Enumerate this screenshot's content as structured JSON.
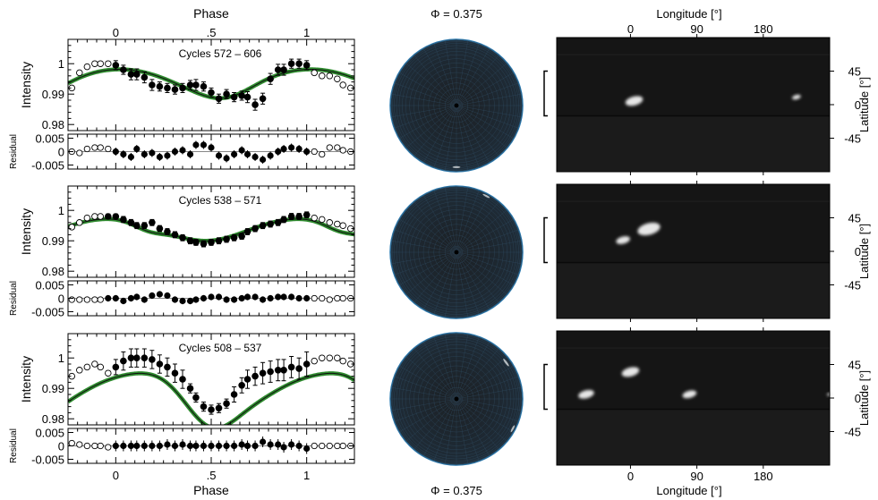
{
  "figure": {
    "top_phase_label": "Phase",
    "bottom_phase_label": "Phase",
    "phi_top_label": "Φ = 0.375",
    "phi_bottom_label": "Φ = 0.375",
    "lon_top_label": "Longitude [°]",
    "lon_bottom_label": "Longitude [°]",
    "intensity_label": "Intensity",
    "residual_label": "Residual",
    "latitude_label": "Latitude [°]"
  },
  "chart_data": [
    {
      "type": "scatter",
      "panel": "light-curve",
      "title": "Cycles 572 – 606",
      "xlabel": "Phase",
      "ylabel": "Intensity",
      "xlim": [
        -0.25,
        1.25
      ],
      "ylim": [
        0.978,
        1.008
      ],
      "xticks": [
        0,
        0.5,
        1
      ],
      "yticks": [
        0.98,
        0.99,
        1
      ],
      "model": {
        "type": "two-dip",
        "base": 0.9995,
        "dips": [
          {
            "center": 0.52,
            "width": 0.22,
            "depth": 0.009
          },
          {
            "center": 0.58,
            "width": 0.12,
            "depth": 0.002
          }
        ]
      },
      "phase": [
        0.0,
        0.04,
        0.08,
        0.11,
        0.15,
        0.19,
        0.23,
        0.27,
        0.31,
        0.35,
        0.39,
        0.42,
        0.46,
        0.5,
        0.54,
        0.58,
        0.62,
        0.66,
        0.69,
        0.73,
        0.77,
        0.81,
        0.85,
        0.88,
        0.92,
        0.96,
        1.0
      ],
      "intensity": [
        0.9995,
        0.998,
        0.9965,
        0.9965,
        0.9955,
        0.993,
        0.9925,
        0.992,
        0.9915,
        0.992,
        0.993,
        0.993,
        0.9925,
        0.9905,
        0.9885,
        0.99,
        0.989,
        0.9895,
        0.989,
        0.9865,
        0.9885,
        0.995,
        0.998,
        0.998,
        1.0,
        1.0,
        0.9995
      ],
      "errors": [
        0.0015,
        0.0015,
        0.0018,
        0.0018,
        0.0018,
        0.0018,
        0.0015,
        0.0015,
        0.0015,
        0.0015,
        0.0015,
        0.0018,
        0.0015,
        0.0015,
        0.0015,
        0.0015,
        0.0015,
        0.0015,
        0.0018,
        0.0018,
        0.0018,
        0.0018,
        0.0018,
        0.0018,
        0.0015,
        0.0015,
        0.0015
      ],
      "open_phase": [
        -0.23,
        -0.19,
        -0.15,
        -0.11,
        -0.08,
        -0.04,
        1.04,
        1.08,
        1.12,
        1.16,
        1.19,
        1.23
      ],
      "open_intensity": [
        0.992,
        0.997,
        0.999,
        1.0,
        1.0,
        1.0,
        0.997,
        0.996,
        0.996,
        0.995,
        0.993,
        0.992
      ],
      "residuals": [
        0.0,
        -0.001,
        -0.002,
        0.001,
        -0.001,
        -0.0005,
        -0.002,
        -0.0015,
        0.0,
        0.0005,
        -0.001,
        0.0025,
        0.0025,
        0.0015,
        -0.0015,
        -0.0025,
        -0.001,
        0.0005,
        -0.001,
        -0.002,
        -0.003,
        -0.0015,
        0.0,
        0.001,
        0.0015,
        0.001,
        0.0
      ],
      "residual_errors": 0.0015,
      "open_residuals": [
        0.0,
        -0.0005,
        0.001,
        0.0015,
        0.0015,
        0.001,
        0.0,
        -0.001,
        0.0015,
        0.0015,
        0.0005,
        0.0
      ],
      "residual_ylim": [
        -0.0065,
        0.0065
      ],
      "residual_yticks": [
        -0.005,
        0,
        0.005
      ],
      "map_xticks": [
        0,
        90,
        180
      ],
      "map_yticks": [
        45,
        0,
        -45
      ],
      "spots": [
        {
          "lon": 5,
          "lat": 5,
          "size": 1.0
        },
        {
          "lon": 225,
          "lat": 10,
          "size": 0.5
        }
      ],
      "sphere_spots": [
        {
          "rx": 0.0,
          "ry": 0.93,
          "size": 0.12
        }
      ]
    },
    {
      "type": "scatter",
      "panel": "light-curve",
      "title": "Cycles 538 – 571",
      "xlabel": "Phase",
      "ylabel": "Intensity",
      "xlim": [
        -0.25,
        1.25
      ],
      "ylim": [
        0.978,
        1.008
      ],
      "xticks": [
        0,
        0.5,
        1
      ],
      "yticks": [
        0.98,
        0.99,
        1
      ],
      "model": {
        "type": "two-dip",
        "base": 0.9985,
        "dips": [
          {
            "center": 0.47,
            "width": 0.22,
            "depth": 0.0085
          },
          {
            "center": 0.17,
            "width": 0.08,
            "depth": 0.002
          }
        ]
      },
      "phase": [
        -0.04,
        0.0,
        0.04,
        0.08,
        0.11,
        0.15,
        0.19,
        0.23,
        0.27,
        0.31,
        0.35,
        0.39,
        0.42,
        0.46,
        0.5,
        0.54,
        0.58,
        0.62,
        0.66,
        0.69,
        0.73,
        0.77,
        0.81,
        0.85,
        0.88,
        0.92,
        0.96,
        1.0
      ],
      "intensity": [
        0.998,
        0.998,
        0.997,
        0.996,
        0.995,
        0.995,
        0.996,
        0.994,
        0.993,
        0.992,
        0.991,
        0.99,
        0.9895,
        0.989,
        0.9895,
        0.99,
        0.9905,
        0.991,
        0.9915,
        0.993,
        0.994,
        0.995,
        0.9955,
        0.996,
        0.997,
        0.998,
        0.998,
        0.9985
      ],
      "errors": [
        0.0008,
        0.0008,
        0.001,
        0.001,
        0.001,
        0.001,
        0.001,
        0.001,
        0.001,
        0.001,
        0.001,
        0.001,
        0.001,
        0.001,
        0.001,
        0.001,
        0.001,
        0.001,
        0.001,
        0.001,
        0.001,
        0.001,
        0.001,
        0.001,
        0.001,
        0.001,
        0.001,
        0.001
      ],
      "open_phase": [
        -0.23,
        -0.19,
        -0.15,
        -0.11,
        -0.08,
        1.04,
        1.08,
        1.12,
        1.16,
        1.19,
        1.23
      ],
      "open_intensity": [
        0.9945,
        0.996,
        0.9975,
        0.998,
        0.998,
        0.9975,
        0.997,
        0.996,
        0.9955,
        0.995,
        0.994
      ],
      "residuals": [
        0.0,
        0.0,
        -0.001,
        0.0,
        0.0005,
        -0.0005,
        0.001,
        0.0015,
        0.001,
        -0.0005,
        -0.001,
        -0.001,
        -0.0005,
        0.0,
        0.0005,
        0.0005,
        -0.0005,
        -0.0005,
        0.0,
        0.0005,
        0.0005,
        -0.0005,
        0.0,
        0.0005,
        0.0005,
        0.0005,
        0.0,
        0.0
      ],
      "residual_errors": 0.0012,
      "open_residuals": [
        -0.0005,
        -0.0005,
        -0.0005,
        -0.0005,
        -0.0005,
        0.0,
        0.0,
        -0.0005,
        0.0,
        0.0,
        0.0
      ],
      "residual_ylim": [
        -0.0065,
        0.0065
      ],
      "residual_yticks": [
        -0.005,
        0,
        0.005
      ],
      "map_xticks": [
        0,
        90,
        180
      ],
      "map_yticks": [
        45,
        0,
        -45
      ],
      "spots": [
        {
          "lon": 25,
          "lat": 30,
          "size": 1.3
        },
        {
          "lon": -10,
          "lat": 15,
          "size": 0.8
        }
      ],
      "sphere_spots": [
        {
          "rx": 0.45,
          "ry": -0.85,
          "size": 0.12
        }
      ]
    },
    {
      "type": "scatter",
      "panel": "light-curve",
      "title": "Cycles 508 – 537",
      "xlabel": "Phase",
      "ylabel": "Intensity",
      "xlim": [
        -0.25,
        1.25
      ],
      "ylim": [
        0.978,
        1.008
      ],
      "xticks": [
        0,
        0.5,
        1
      ],
      "yticks": [
        0.98,
        0.99,
        1
      ],
      "model": {
        "type": "two-dip",
        "base": 1.0,
        "dips": [
          {
            "center": 0.5,
            "width": 0.14,
            "depth": 0.0165
          },
          {
            "center": 0.75,
            "width": 0.12,
            "depth": 0.003
          },
          {
            "center": -0.25,
            "width": 0.3,
            "depth": 0.004
          },
          {
            "center": 1.75,
            "width": 0.3,
            "depth": 0.004
          }
        ]
      },
      "phase": [
        0.0,
        0.04,
        0.08,
        0.11,
        0.15,
        0.19,
        0.23,
        0.27,
        0.31,
        0.35,
        0.39,
        0.42,
        0.46,
        0.5,
        0.54,
        0.58,
        0.62,
        0.66,
        0.69,
        0.73,
        0.77,
        0.81,
        0.85,
        0.88,
        0.92,
        0.96,
        1.0
      ],
      "intensity": [
        0.997,
        0.999,
        1.0,
        1.0,
        1.0,
        0.9995,
        0.998,
        0.997,
        0.995,
        0.993,
        0.99,
        0.987,
        0.984,
        0.983,
        0.9835,
        0.985,
        0.988,
        0.991,
        0.993,
        0.994,
        0.995,
        0.9955,
        0.996,
        0.996,
        0.997,
        0.9965,
        0.998
      ],
      "errors": [
        0.0025,
        0.003,
        0.003,
        0.003,
        0.003,
        0.003,
        0.003,
        0.003,
        0.003,
        0.003,
        0.0015,
        0.0015,
        0.0015,
        0.0015,
        0.0015,
        0.0015,
        0.0025,
        0.0025,
        0.003,
        0.003,
        0.0035,
        0.0035,
        0.0035,
        0.0035,
        0.0035,
        0.0035,
        0.004
      ],
      "open_phase": [
        -0.23,
        -0.19,
        -0.15,
        -0.11,
        -0.08,
        -0.04,
        1.04,
        1.08,
        1.12,
        1.16,
        1.19,
        1.23
      ],
      "open_intensity": [
        0.994,
        0.996,
        0.997,
        0.998,
        0.997,
        0.995,
        0.999,
        1.0,
        1.0,
        1.0,
        0.999,
        0.998
      ],
      "residuals": [
        0.0,
        0.0,
        0.0,
        0.0,
        0.0,
        0.0,
        0.0,
        0.0005,
        0.0,
        0.0005,
        0.0,
        0.0,
        0.0,
        0.0,
        0.0,
        0.0,
        0.0,
        0.0005,
        0.0,
        0.0,
        0.0015,
        0.0005,
        0.0005,
        -0.0005,
        0.0005,
        0.0,
        -0.001
      ],
      "residual_errors": 0.002,
      "open_residuals": [
        0.001,
        0.0005,
        0.0,
        0.0,
        0.0,
        -0.0005,
        0.0,
        0.0,
        0.0,
        0.0,
        0.0,
        0.0
      ],
      "residual_ylim": [
        -0.0065,
        0.0065
      ],
      "residual_yticks": [
        -0.005,
        0,
        0.005
      ],
      "map_xticks": [
        0,
        90,
        180
      ],
      "map_yticks": [
        45,
        0,
        -45
      ],
      "spots": [
        {
          "lon": -60,
          "lat": 5,
          "size": 0.9
        },
        {
          "lon": 0,
          "lat": 35,
          "size": 1.0
        },
        {
          "lon": 80,
          "lat": 5,
          "size": 0.8
        },
        {
          "lon": 270,
          "lat": 5,
          "size": 0.3
        }
      ],
      "sphere_spots": [
        {
          "rx": 0.75,
          "ry": -0.55,
          "size": 0.14
        },
        {
          "rx": 0.85,
          "ry": 0.45,
          "size": 0.12
        }
      ]
    }
  ]
}
